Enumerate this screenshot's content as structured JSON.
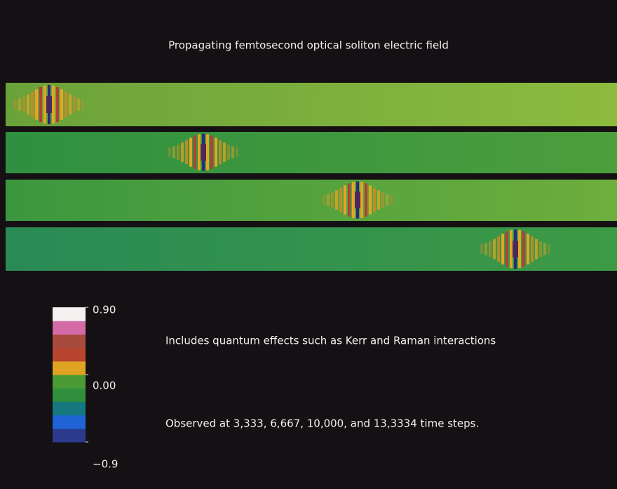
{
  "title": "Propagating femtosecond optical soliton electric field",
  "colorbar": {
    "colors": [
      "#2b3a8c",
      "#1f63d6",
      "#14787e",
      "#2f8f3c",
      "#4a9a35",
      "#e0a321",
      "#b8452f",
      "#a84a3d",
      "#d46aa6",
      "#f3f0f0"
    ],
    "lim": [
      -0.9,
      0.9
    ],
    "ticks": [
      {
        "value": 0.9,
        "label": "0.90"
      },
      {
        "value": 0,
        "label": "0.00"
      },
      {
        "value": -0.9,
        "label": "−0.9"
      }
    ]
  },
  "notes": [
    "Includes quantum effects such as Kerr and Raman interactions",
    "Observed at 3,333, 6,667, 10,000, and 13,3334 time steps."
  ]
}
